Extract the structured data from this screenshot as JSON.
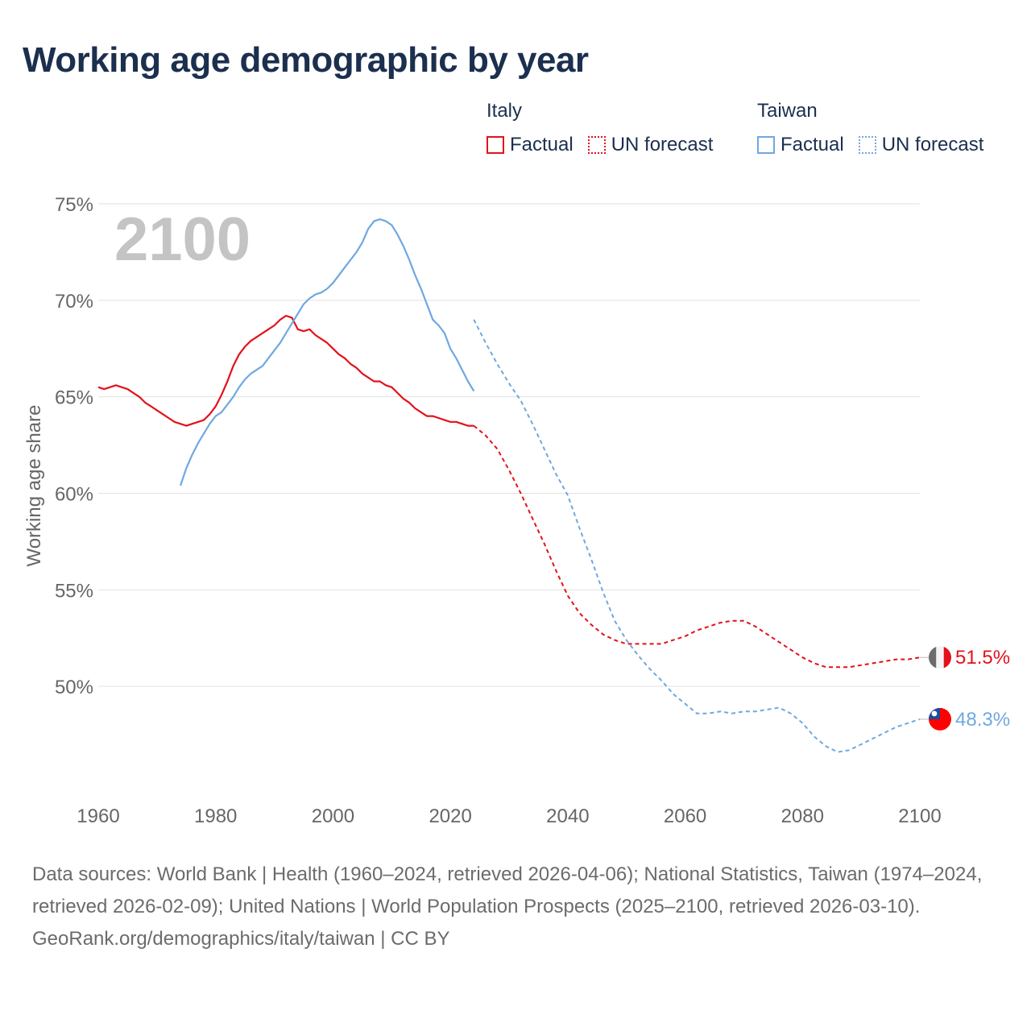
{
  "title": "Working age demographic by year",
  "legend": {
    "groups": [
      {
        "name": "Italy",
        "factual_label": "Factual",
        "forecast_label": "UN forecast",
        "color": "#e3111b"
      },
      {
        "name": "Taiwan",
        "factual_label": "Factual",
        "forecast_label": "UN forecast",
        "color": "#6fa8e0"
      }
    ]
  },
  "footer": {
    "sources": "Data sources: World Bank | Health (1960–2024, retrieved 2026-04-06); National Statistics, Taiwan (1974–2024, retrieved 2026-02-09); United Nations | World Population Prospects (2025–2100, retrieved 2026-03-10).",
    "credit": "GeoRank.org/demographics/italy/taiwan | CC BY"
  },
  "chart_data": {
    "type": "line",
    "title": "Working age demographic by year",
    "xlabel": "",
    "ylabel": "Working age share",
    "xlim": [
      1960,
      2100
    ],
    "ylim": [
      45,
      75
    ],
    "x_ticks": [
      1960,
      1980,
      2000,
      2020,
      2040,
      2060,
      2080,
      2100
    ],
    "y_ticks": [
      50,
      55,
      60,
      65,
      70,
      75
    ],
    "y_tick_labels": [
      "50%",
      "55%",
      "60%",
      "65%",
      "70%",
      "75%"
    ],
    "grid": true,
    "year_watermark": "2100",
    "series": [
      {
        "name": "Italy",
        "color": "#e3111b",
        "end_label": "51.5%",
        "factual": {
          "x": [
            1960,
            1961,
            1962,
            1963,
            1964,
            1965,
            1966,
            1967,
            1968,
            1969,
            1970,
            1971,
            1972,
            1973,
            1974,
            1975,
            1976,
            1977,
            1978,
            1979,
            1980,
            1981,
            1982,
            1983,
            1984,
            1985,
            1986,
            1987,
            1988,
            1989,
            1990,
            1991,
            1992,
            1993,
            1994,
            1995,
            1996,
            1997,
            1998,
            1999,
            2000,
            2001,
            2002,
            2003,
            2004,
            2005,
            2006,
            2007,
            2008,
            2009,
            2010,
            2011,
            2012,
            2013,
            2014,
            2015,
            2016,
            2017,
            2018,
            2019,
            2020,
            2021,
            2022,
            2023,
            2024
          ],
          "y": [
            65.5,
            65.4,
            65.5,
            65.6,
            65.5,
            65.4,
            65.2,
            65.0,
            64.7,
            64.5,
            64.3,
            64.1,
            63.9,
            63.7,
            63.6,
            63.5,
            63.6,
            63.7,
            63.8,
            64.1,
            64.5,
            65.1,
            65.8,
            66.6,
            67.2,
            67.6,
            67.9,
            68.1,
            68.3,
            68.5,
            68.7,
            69.0,
            69.2,
            69.1,
            68.5,
            68.4,
            68.5,
            68.2,
            68.0,
            67.8,
            67.5,
            67.2,
            67.0,
            66.7,
            66.5,
            66.2,
            66.0,
            65.8,
            65.8,
            65.6,
            65.5,
            65.2,
            64.9,
            64.7,
            64.4,
            64.2,
            64.0,
            64.0,
            63.9,
            63.8,
            63.7,
            63.7,
            63.6,
            63.5,
            63.5
          ]
        },
        "forecast": {
          "x": [
            2024,
            2026,
            2028,
            2030,
            2032,
            2034,
            2036,
            2038,
            2040,
            2042,
            2044,
            2046,
            2048,
            2050,
            2052,
            2054,
            2056,
            2058,
            2060,
            2062,
            2064,
            2066,
            2068,
            2070,
            2072,
            2074,
            2076,
            2078,
            2080,
            2082,
            2084,
            2086,
            2088,
            2090,
            2092,
            2094,
            2096,
            2098,
            2100
          ],
          "y": [
            63.5,
            63.0,
            62.3,
            61.2,
            60.0,
            58.7,
            57.4,
            56.0,
            54.7,
            53.8,
            53.2,
            52.7,
            52.4,
            52.2,
            52.2,
            52.2,
            52.2,
            52.4,
            52.6,
            52.9,
            53.1,
            53.3,
            53.4,
            53.4,
            53.1,
            52.7,
            52.3,
            51.9,
            51.5,
            51.2,
            51.0,
            51.0,
            51.0,
            51.1,
            51.2,
            51.3,
            51.4,
            51.4,
            51.5
          ]
        }
      },
      {
        "name": "Taiwan",
        "color": "#6fa8e0",
        "end_label": "48.3%",
        "factual": {
          "x": [
            1974,
            1975,
            1976,
            1977,
            1978,
            1979,
            1980,
            1981,
            1982,
            1983,
            1984,
            1985,
            1986,
            1987,
            1988,
            1989,
            1990,
            1991,
            1992,
            1993,
            1994,
            1995,
            1996,
            1997,
            1998,
            1999,
            2000,
            2001,
            2002,
            2003,
            2004,
            2005,
            2006,
            2007,
            2008,
            2009,
            2010,
            2011,
            2012,
            2013,
            2014,
            2015,
            2016,
            2017,
            2018,
            2019,
            2020,
            2021,
            2022,
            2023,
            2024
          ],
          "y": [
            60.4,
            61.3,
            62.0,
            62.6,
            63.1,
            63.6,
            64.0,
            64.2,
            64.6,
            65.0,
            65.5,
            65.9,
            66.2,
            66.4,
            66.6,
            67.0,
            67.4,
            67.8,
            68.3,
            68.8,
            69.3,
            69.8,
            70.1,
            70.3,
            70.4,
            70.6,
            70.9,
            71.3,
            71.7,
            72.1,
            72.5,
            73.0,
            73.7,
            74.1,
            74.2,
            74.1,
            73.9,
            73.4,
            72.8,
            72.1,
            71.3,
            70.6,
            69.8,
            69.0,
            68.7,
            68.3,
            67.5,
            67.0,
            66.4,
            65.8,
            65.3
          ]
        },
        "forecast": {
          "x": [
            2024,
            2026,
            2028,
            2030,
            2032,
            2034,
            2036,
            2038,
            2040,
            2042,
            2044,
            2046,
            2048,
            2050,
            2052,
            2054,
            2056,
            2058,
            2060,
            2062,
            2064,
            2066,
            2068,
            2070,
            2072,
            2074,
            2076,
            2078,
            2080,
            2082,
            2084,
            2086,
            2088,
            2090,
            2092,
            2094,
            2096,
            2098,
            2100
          ],
          "y": [
            69.0,
            67.8,
            66.7,
            65.7,
            64.8,
            63.6,
            62.3,
            61.0,
            59.9,
            58.2,
            56.6,
            54.9,
            53.4,
            52.4,
            51.6,
            50.9,
            50.3,
            49.6,
            49.1,
            48.6,
            48.6,
            48.7,
            48.6,
            48.7,
            48.7,
            48.8,
            48.9,
            48.6,
            48.1,
            47.4,
            46.9,
            46.6,
            46.7,
            47.0,
            47.3,
            47.6,
            47.9,
            48.1,
            48.3
          ]
        }
      }
    ]
  }
}
